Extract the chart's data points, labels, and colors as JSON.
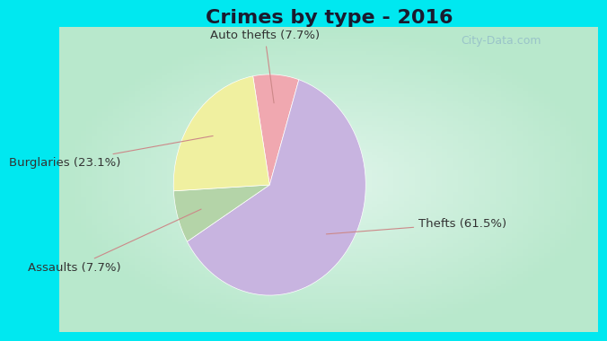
{
  "title": "Crimes by type - 2016",
  "slices": [
    {
      "label": "Thefts (61.5%)",
      "value": 61.5,
      "color": "#c8b4e0"
    },
    {
      "label": "Auto thefts (7.7%)",
      "value": 7.7,
      "color": "#f0a8b0"
    },
    {
      "label": "Burglaries (23.1%)",
      "value": 23.1,
      "color": "#f0f0a0"
    },
    {
      "label": "Assaults (7.7%)",
      "value": 7.7,
      "color": "#b4d4a8"
    }
  ],
  "bg_cyan": "#00e8f0",
  "bg_inner_edge": "#b8e8cc",
  "bg_inner_center": "#e8f8f0",
  "title_fontsize": 16,
  "label_fontsize": 9.5,
  "watermark": "City-Data.com"
}
